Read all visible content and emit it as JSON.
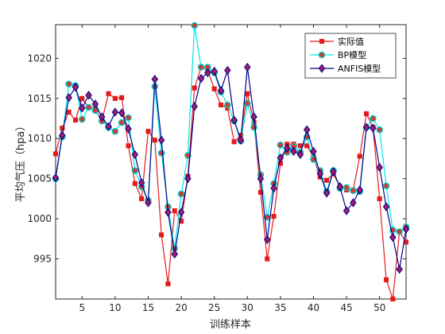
{
  "chart_data": {
    "type": "line",
    "title": "",
    "xlabel": "训练样本",
    "ylabel": "平均气压（hpa）",
    "xlim": [
      1,
      54
    ],
    "ylim": [
      990,
      1024.2
    ],
    "xticks": [
      5,
      10,
      15,
      20,
      25,
      30,
      35,
      40,
      45,
      50
    ],
    "yticks": [
      995,
      1000,
      1005,
      1010,
      1015,
      1020
    ],
    "grid": false,
    "legend_position": "top-right",
    "x": [
      1,
      2,
      3,
      4,
      5,
      6,
      7,
      8,
      9,
      10,
      11,
      12,
      13,
      14,
      15,
      16,
      17,
      18,
      19,
      20,
      21,
      22,
      23,
      24,
      25,
      26,
      27,
      28,
      29,
      30,
      31,
      32,
      33,
      34,
      35,
      36,
      37,
      38,
      39,
      40,
      41,
      42,
      43,
      44,
      45,
      46,
      47,
      48,
      49,
      50,
      51,
      52,
      53,
      54
    ],
    "series": [
      {
        "name": "实际值",
        "color": "#e41a1c",
        "marker": "square",
        "values": [
          1008.1,
          1011.3,
          1013.3,
          1012.3,
          1015.0,
          1013.9,
          1013.7,
          1012.2,
          1015.6,
          1015.0,
          1015.1,
          1009.1,
          1004.4,
          1002.5,
          1010.9,
          1009.8,
          998.0,
          991.9,
          1001.0,
          999.7,
          1005.3,
          1016.3,
          1018.9,
          1018.5,
          1016.2,
          1014.2,
          1013.8,
          1009.6,
          1010.4,
          1015.6,
          1012.0,
          1003.3,
          995.0,
          1000.3,
          1006.9,
          1009.3,
          1009.3,
          1009.1,
          1009.1,
          1007.7,
          1005.2,
          1004.8,
          1005.6,
          1004.0,
          1003.6,
          1003.6,
          1007.8,
          1013.1,
          1011.4,
          1002.5,
          992.4,
          990.0,
          998.4,
          997.1
        ]
      },
      {
        "name": "BP模型",
        "color": "#00e5e5",
        "marker": "circle",
        "values": [
          1005.0,
          1010.2,
          1016.8,
          1016.6,
          1012.4,
          1013.9,
          1013.5,
          1012.2,
          1011.4,
          1010.9,
          1012.0,
          1012.6,
          1006.0,
          1004.0,
          1002.3,
          1016.5,
          1008.2,
          1001.5,
          996.3,
          1003.1,
          1007.9,
          1024.1,
          1018.9,
          1018.9,
          1018.2,
          1015.8,
          1014.2,
          1012.2,
          1009.7,
          1014.4,
          1011.4,
          1005.5,
          1000.2,
          1004.4,
          1009.2,
          1008.3,
          1009.0,
          1008.3,
          1010.2,
          1007.4,
          1006.0,
          1003.4,
          1006.0,
          1003.8,
          1003.9,
          1003.5,
          1003.4,
          1011.4,
          1012.5,
          1011.1,
          1004.1,
          998.6,
          998.4,
          999.0
        ]
      },
      {
        "name": "ANFIS模型",
        "color": "#00008b",
        "marker": "diamond",
        "values": [
          1005.1,
          1010.4,
          1015.1,
          1016.4,
          1013.8,
          1015.4,
          1014.3,
          1012.7,
          1011.5,
          1013.3,
          1013.2,
          1011.2,
          1008.0,
          1004.5,
          1002.0,
          1017.4,
          1009.8,
          1000.8,
          995.6,
          1000.8,
          1005.0,
          1014.0,
          1017.5,
          1018.2,
          1018.4,
          1016.0,
          1018.5,
          1012.3,
          1009.8,
          1018.9,
          1012.7,
          1005.0,
          997.4,
          1003.8,
          1007.6,
          1008.8,
          1008.4,
          1008.0,
          1011.1,
          1008.4,
          1005.6,
          1003.2,
          1005.9,
          1004.0,
          1001.0,
          1002.0,
          1003.6,
          1011.4,
          1011.3,
          1006.4,
          1001.5,
          997.7,
          993.7,
          998.7
        ]
      }
    ]
  }
}
